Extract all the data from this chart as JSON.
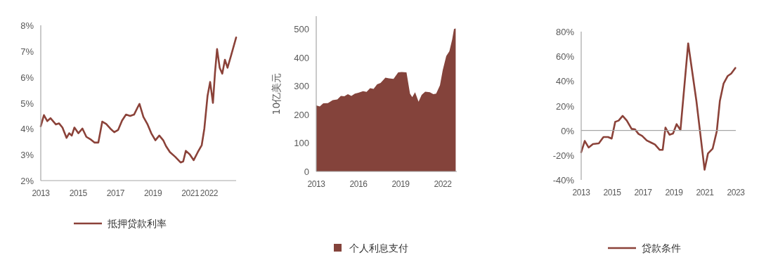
{
  "chart_data": [
    {
      "type": "line",
      "x": [
        2013.0,
        2013.17,
        2013.35,
        2013.52,
        2013.81,
        2013.98,
        2014.16,
        2014.38,
        2014.52,
        2014.66,
        2014.8,
        2015.01,
        2015.23,
        2015.44,
        2015.65,
        2015.87,
        2016.08,
        2016.29,
        2016.5,
        2016.72,
        2016.93,
        2017.14,
        2017.35,
        2017.56,
        2017.78,
        2017.99,
        2018.21,
        2018.28,
        2018.49,
        2018.7,
        2018.91,
        2019.13,
        2019.34,
        2019.55,
        2019.7,
        2019.91,
        2020.19,
        2020.48,
        2020.62,
        2020.76,
        2020.97,
        2021.18,
        2021.4,
        2021.61,
        2021.75,
        2021.92,
        2022.06,
        2022.21,
        2022.32,
        2022.43,
        2022.57,
        2022.71,
        2022.85,
        2022.99,
        2023.17,
        2023.31,
        2023.45
      ],
      "series": [
        {
          "name": "抵押贷款利率",
          "color": "#8b4239",
          "values": [
            4.1,
            4.53,
            4.3,
            4.41,
            4.17,
            4.21,
            4.05,
            3.65,
            3.83,
            3.74,
            4.05,
            3.83,
            4.01,
            3.69,
            3.6,
            3.47,
            3.47,
            4.28,
            4.19,
            4.01,
            3.87,
            3.96,
            4.32,
            4.55,
            4.5,
            4.55,
            4.87,
            4.96,
            4.46,
            4.19,
            3.83,
            3.56,
            3.74,
            3.56,
            3.33,
            3.1,
            2.92,
            2.7,
            2.74,
            3.15,
            3.01,
            2.79,
            3.1,
            3.37,
            4.01,
            5.27,
            5.81,
            5.0,
            6.17,
            7.08,
            6.36,
            6.13,
            6.67,
            6.36,
            6.81,
            7.17,
            7.53
          ]
        }
      ],
      "xlim": [
        2013,
        2023.45
      ],
      "xticks": [
        2013,
        2015,
        2017,
        2019,
        2021,
        2022
      ],
      "ylim": [
        2,
        8
      ],
      "yticks": [
        {
          "value": 2,
          "label": "2%"
        },
        {
          "value": 3,
          "label": "3%"
        },
        {
          "value": 4,
          "label": "4%"
        },
        {
          "value": 5,
          "label": "5%"
        },
        {
          "value": 6,
          "label": "6%"
        },
        {
          "value": 7,
          "label": "7%"
        },
        {
          "value": 8,
          "label": "8%"
        }
      ],
      "legend": "bottom",
      "grid": false
    },
    {
      "type": "area",
      "ylabel": "10亿美元",
      "x": [
        2013.0,
        2013.25,
        2013.5,
        2013.83,
        2014.17,
        2014.5,
        2014.75,
        2015.0,
        2015.25,
        2015.5,
        2015.75,
        2016.0,
        2016.33,
        2016.58,
        2016.83,
        2017.08,
        2017.33,
        2017.58,
        2017.92,
        2018.17,
        2018.5,
        2018.83,
        2019.08,
        2019.42,
        2019.67,
        2019.83,
        2020.03,
        2020.28,
        2020.5,
        2020.75,
        2021.08,
        2021.33,
        2021.53,
        2021.8,
        2022.0,
        2022.25,
        2022.47,
        2022.67,
        2022.8,
        2022.92
      ],
      "series": [
        {
          "name": "个人利息支付",
          "color": "#84433b",
          "values": [
            232,
            228,
            239,
            240,
            250,
            253,
            265,
            264,
            271,
            265,
            273,
            276,
            282,
            279,
            292,
            290,
            306,
            311,
            329,
            327,
            325,
            348,
            349,
            348,
            273,
            261,
            278,
            245,
            269,
            280,
            278,
            271,
            273,
            302,
            356,
            405,
            422,
            463,
            500,
            502
          ]
        }
      ],
      "xlim": [
        2013,
        2023
      ],
      "xticks": [
        2013,
        2016,
        2019,
        2022
      ],
      "ylim": [
        0,
        545
      ],
      "yticks": [
        0,
        100,
        200,
        300,
        400,
        500
      ],
      "legend": "bottom",
      "grid": false
    },
    {
      "type": "line",
      "x": [
        2013.0,
        2013.23,
        2013.48,
        2013.76,
        2014.14,
        2014.44,
        2014.74,
        2014.97,
        2015.2,
        2015.42,
        2015.68,
        2015.95,
        2016.26,
        2016.48,
        2016.71,
        2016.94,
        2017.24,
        2017.55,
        2017.77,
        2018.08,
        2018.27,
        2018.45,
        2018.71,
        2018.94,
        2019.17,
        2019.42,
        2019.92,
        2020.45,
        2020.98,
        2021.2,
        2021.5,
        2021.77,
        2021.97,
        2022.21,
        2022.47,
        2022.7,
        2022.97
      ],
      "series": [
        {
          "name": "贷款条件",
          "color": "#8b4239",
          "values": [
            -17.6,
            -8.5,
            -13.8,
            -11,
            -10.4,
            -5.3,
            -5.3,
            -6.6,
            7,
            8,
            11.8,
            8,
            1.3,
            0.9,
            -2.8,
            -4.4,
            -8.1,
            -10,
            -11.4,
            -15.7,
            -15.7,
            2.3,
            -3.4,
            -2.5,
            5.1,
            0.4,
            70.5,
            24,
            -31.8,
            -18.6,
            -14.8,
            -0.6,
            24,
            38,
            44,
            46,
            50.6
          ]
        }
      ],
      "xlim": [
        2013,
        2023
      ],
      "xticks": [
        2013,
        2015,
        2017,
        2019,
        2021,
        2023
      ],
      "ylim": [
        -40,
        80
      ],
      "yticks": [
        {
          "value": -40,
          "label": "-40%"
        },
        {
          "value": -20,
          "label": "-20%"
        },
        {
          "value": 0,
          "label": "0%"
        },
        {
          "value": 20,
          "label": "20%"
        },
        {
          "value": 40,
          "label": "40%"
        },
        {
          "value": 60,
          "label": "60%"
        },
        {
          "value": 80,
          "label": "80%"
        }
      ],
      "ref_lines": [
        {
          "axis": "y",
          "value": 0,
          "color": "#a6a6a6"
        }
      ],
      "legend": "bottom",
      "grid": false
    }
  ]
}
